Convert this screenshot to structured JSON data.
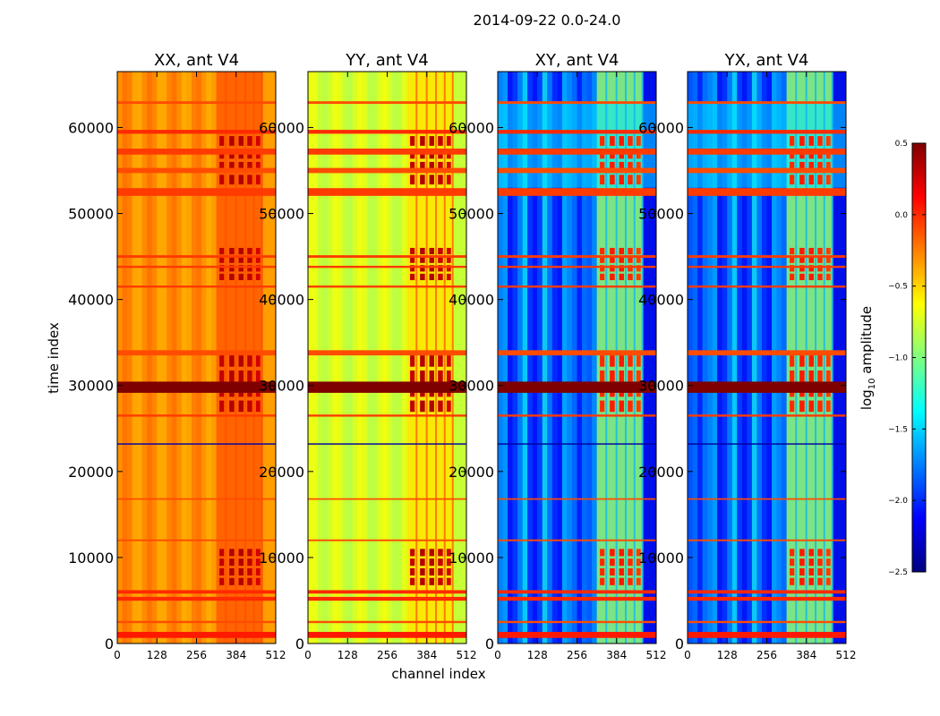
{
  "chart_data": {
    "type": "heatmap",
    "title": "2014-09-22 0.0-24.0",
    "xlabel": "channel index",
    "ylabel": "time index",
    "xlim": [
      0,
      512
    ],
    "ylim": [
      0,
      66500
    ],
    "x_ticks": [
      "0",
      "128",
      "256",
      "384",
      "512"
    ],
    "x_tick_values": [
      0,
      128,
      256,
      384,
      512
    ],
    "y_ticks": [
      "0",
      "10000",
      "20000",
      "30000",
      "40000",
      "50000",
      "60000"
    ],
    "y_tick_values": [
      0,
      10000,
      20000,
      30000,
      40000,
      50000,
      60000
    ],
    "colorbar": {
      "label": "log10 amplitude",
      "label_main": "log",
      "label_sub": "10",
      "label_tail": " amplitude",
      "range": [
        -2.5,
        0.5
      ],
      "ticks": [
        "0.5",
        "0.0",
        "−0.5",
        "−1.0",
        "−1.5",
        "−2.0",
        "−2.5"
      ],
      "tick_values": [
        0.5,
        0.0,
        -0.5,
        -1.0,
        -1.5,
        -2.0,
        -2.5
      ]
    },
    "colormap": [
      "#00007f",
      "#0000ff",
      "#007fff",
      "#00ffff",
      "#7fff7f",
      "#ffff00",
      "#ff7f00",
      "#ff0000",
      "#7f0000"
    ],
    "panels": [
      {
        "title": "XX, ant V4",
        "base_level": -0.3
      },
      {
        "title": "YY, ant V4",
        "base_level": -0.75
      },
      {
        "title": "XY, ant V4",
        "base_level": -1.9
      },
      {
        "title": "YX, ant V4",
        "base_level": -1.9
      }
    ],
    "rfi_time_bands": [
      {
        "t": 1000,
        "dt": 700,
        "level": 0.05
      },
      {
        "t": 2500,
        "dt": 250,
        "level": -0.1
      },
      {
        "t": 5200,
        "dt": 450,
        "level": 0.0
      },
      {
        "t": 6000,
        "dt": 400,
        "level": 0.0
      },
      {
        "t": 12000,
        "dt": 200,
        "level": -0.1
      },
      {
        "t": 16800,
        "dt": 180,
        "level": -0.1
      },
      {
        "t": 23200,
        "dt": 150,
        "level": -2.4
      },
      {
        "t": 26500,
        "dt": 250,
        "level": -0.05
      },
      {
        "t": 29800,
        "dt": 1300,
        "level": 0.5
      },
      {
        "t": 33800,
        "dt": 600,
        "level": -0.1
      },
      {
        "t": 41500,
        "dt": 250,
        "level": -0.05
      },
      {
        "t": 43800,
        "dt": 250,
        "level": -0.05
      },
      {
        "t": 45000,
        "dt": 300,
        "level": -0.05
      },
      {
        "t": 52500,
        "dt": 900,
        "level": -0.05
      },
      {
        "t": 55000,
        "dt": 600,
        "level": -0.1
      },
      {
        "t": 57200,
        "dt": 700,
        "level": -0.05
      },
      {
        "t": 59500,
        "dt": 450,
        "level": 0.0
      },
      {
        "t": 62900,
        "dt": 300,
        "level": -0.1
      }
    ],
    "rfi_channel_blocks": [
      {
        "start": 330,
        "end": 345,
        "level": 0.15
      },
      {
        "start": 362,
        "end": 378,
        "level": 0.2
      },
      {
        "start": 392,
        "end": 408,
        "level": 0.2
      },
      {
        "start": 420,
        "end": 436,
        "level": 0.15
      },
      {
        "start": 448,
        "end": 462,
        "level": 0.1
      }
    ],
    "active_time_bands": [
      {
        "t0": 6500,
        "t1": 11000
      },
      {
        "t0": 26500,
        "t1": 33500
      },
      {
        "t0": 42000,
        "t1": 46000
      },
      {
        "t0": 53000,
        "t1": 59000
      }
    ]
  }
}
